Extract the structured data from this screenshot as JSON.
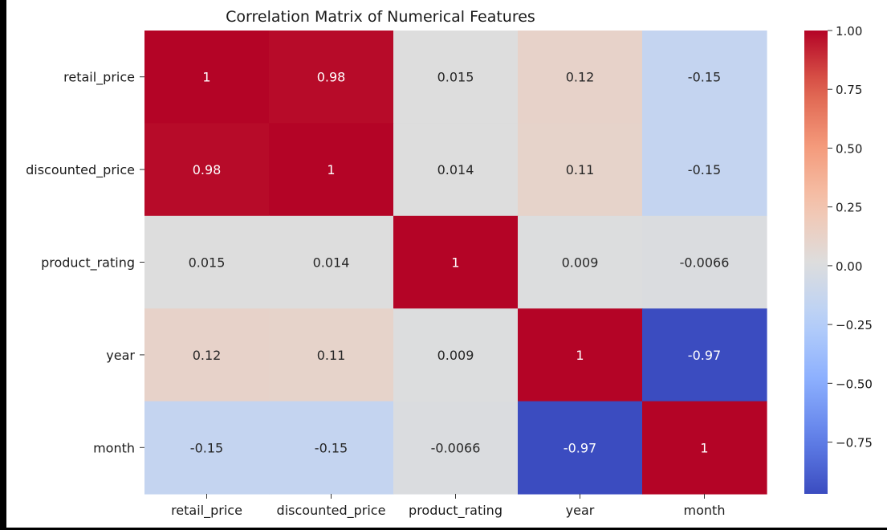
{
  "chart_data": {
    "type": "heatmap",
    "title": "Correlation Matrix of Numerical Features",
    "xlabel": "",
    "ylabel": "",
    "x_categories": [
      "retail_price",
      "discounted_price",
      "product_rating",
      "year",
      "month"
    ],
    "y_categories": [
      "retail_price",
      "discounted_price",
      "product_rating",
      "year",
      "month"
    ],
    "values": [
      [
        1,
        0.98,
        0.015,
        0.12,
        -0.15
      ],
      [
        0.98,
        1,
        0.014,
        0.11,
        -0.15
      ],
      [
        0.015,
        0.014,
        1,
        0.009,
        -0.0066
      ],
      [
        0.12,
        0.11,
        0.009,
        1,
        -0.97
      ],
      [
        -0.15,
        -0.15,
        -0.0066,
        -0.97,
        1
      ]
    ],
    "annotations": [
      [
        "1",
        "0.98",
        "0.015",
        "0.12",
        "-0.15"
      ],
      [
        "0.98",
        "1",
        "0.014",
        "0.11",
        "-0.15"
      ],
      [
        "0.015",
        "0.014",
        "1",
        "0.009",
        "-0.0066"
      ],
      [
        "0.12",
        "0.11",
        "0.009",
        "1",
        "-0.97"
      ],
      [
        "-0.15",
        "-0.15",
        "-0.0066",
        "-0.97",
        "1"
      ]
    ],
    "colormap": "coolwarm",
    "colorbar": {
      "range": [
        -0.97,
        1.0
      ],
      "ticks": [
        1.0,
        0.75,
        0.5,
        0.25,
        0.0,
        -0.25,
        -0.5,
        -0.75
      ],
      "tick_labels": [
        "1.00",
        "0.75",
        "0.50",
        "0.25",
        "0.00",
        "−0.25",
        "−0.50",
        "−0.75"
      ]
    },
    "grid": false,
    "legend": "colorbar-right"
  }
}
